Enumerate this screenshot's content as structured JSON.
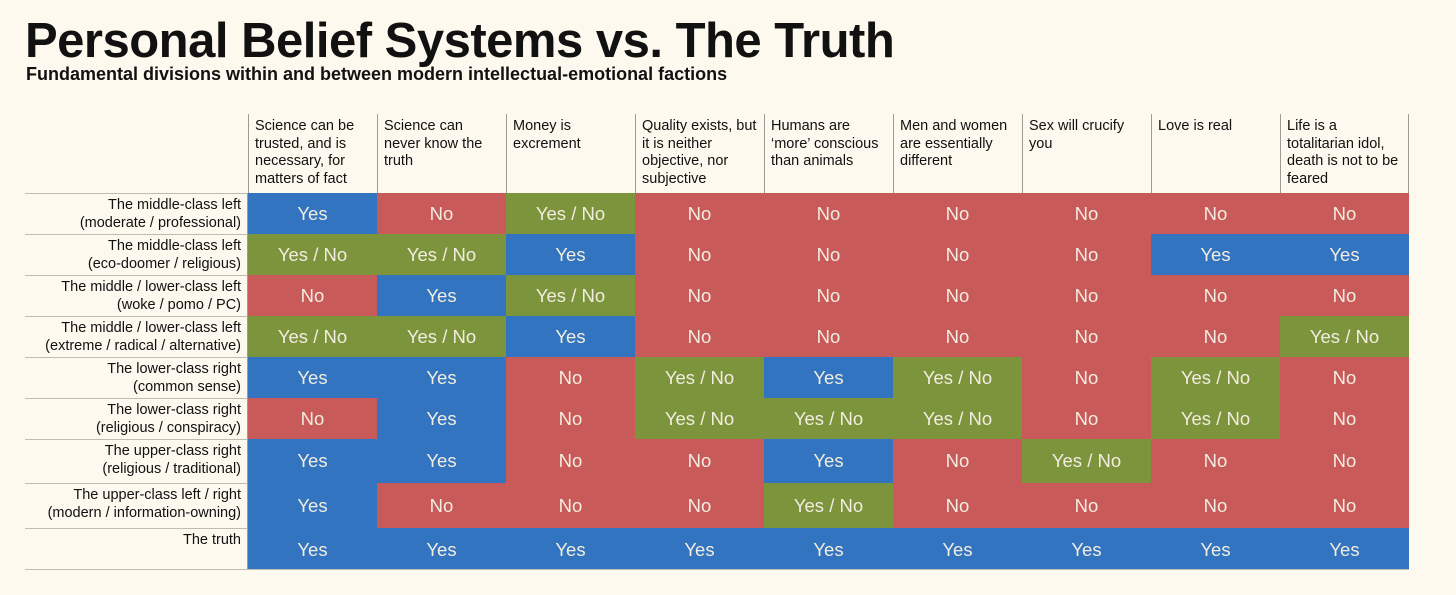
{
  "title": "Personal Belief Systems vs. The Truth",
  "subtitle": "Fundamental divisions within and between modern intellectual-emotional factions",
  "colors": {
    "Yes": "#3274c0",
    "No": "#c95a5a",
    "Yes / No": "#7c943c"
  },
  "chart_data": {
    "type": "table",
    "title": "Personal Belief Systems vs. The Truth",
    "subtitle": "Fundamental divisions within and between modern intellectual-emotional factions",
    "columns": [
      "Science can be trusted, and is necessary, for matters of fact",
      "Science can never know the truth",
      "Money is excrement",
      "Quality exists, but it is neither objective, nor subjective",
      "Humans are ‘more’ conscious than animals",
      "Men and women are essentially different",
      "Sex will crucify you",
      "Love is real",
      "Life is a totalitarian idol, death is not to be feared"
    ],
    "rows": [
      {
        "label": [
          "The middle-class left",
          "(moderate / professional)"
        ],
        "values": [
          "Yes",
          "No",
          "Yes / No",
          "No",
          "No",
          "No",
          "No",
          "No",
          "No"
        ]
      },
      {
        "label": [
          "The middle-class left",
          "(eco-doomer / religious)"
        ],
        "values": [
          "Yes / No",
          "Yes / No",
          "Yes",
          "No",
          "No",
          "No",
          "No",
          "Yes",
          "Yes"
        ]
      },
      {
        "label": [
          "The middle / lower-class left",
          "(woke / pomo / PC)"
        ],
        "values": [
          "No",
          "Yes",
          "Yes / No",
          "No",
          "No",
          "No",
          "No",
          "No",
          "No"
        ]
      },
      {
        "label": [
          "The middle / lower-class left",
          "(extreme / radical / alternative)"
        ],
        "values": [
          "Yes / No",
          "Yes / No",
          "Yes",
          "No",
          "No",
          "No",
          "No",
          "No",
          "Yes / No"
        ]
      },
      {
        "label": [
          "The lower-class right",
          "(common sense)"
        ],
        "values": [
          "Yes",
          "Yes",
          "No",
          "Yes / No",
          "Yes",
          "Yes / No",
          "No",
          "Yes / No",
          "No"
        ]
      },
      {
        "label": [
          "The lower-class right",
          "(religious / conspiracy)"
        ],
        "values": [
          "No",
          "Yes",
          "No",
          "Yes / No",
          "Yes / No",
          "Yes / No",
          "No",
          "Yes / No",
          "No"
        ]
      },
      {
        "label": [
          "The upper-class right",
          "(religious / traditional)"
        ],
        "values": [
          "Yes",
          "Yes",
          "No",
          "No",
          "Yes",
          "No",
          "Yes / No",
          "No",
          "No"
        ]
      },
      {
        "label": [
          "The upper-class left / right",
          "(modern / information-owning)"
        ],
        "values": [
          "Yes",
          "No",
          "No",
          "No",
          "Yes / No",
          "No",
          "No",
          "No",
          "No"
        ]
      },
      {
        "label": [
          "The truth"
        ],
        "values": [
          "Yes",
          "Yes",
          "Yes",
          "Yes",
          "Yes",
          "Yes",
          "Yes",
          "Yes",
          "Yes"
        ]
      }
    ]
  }
}
